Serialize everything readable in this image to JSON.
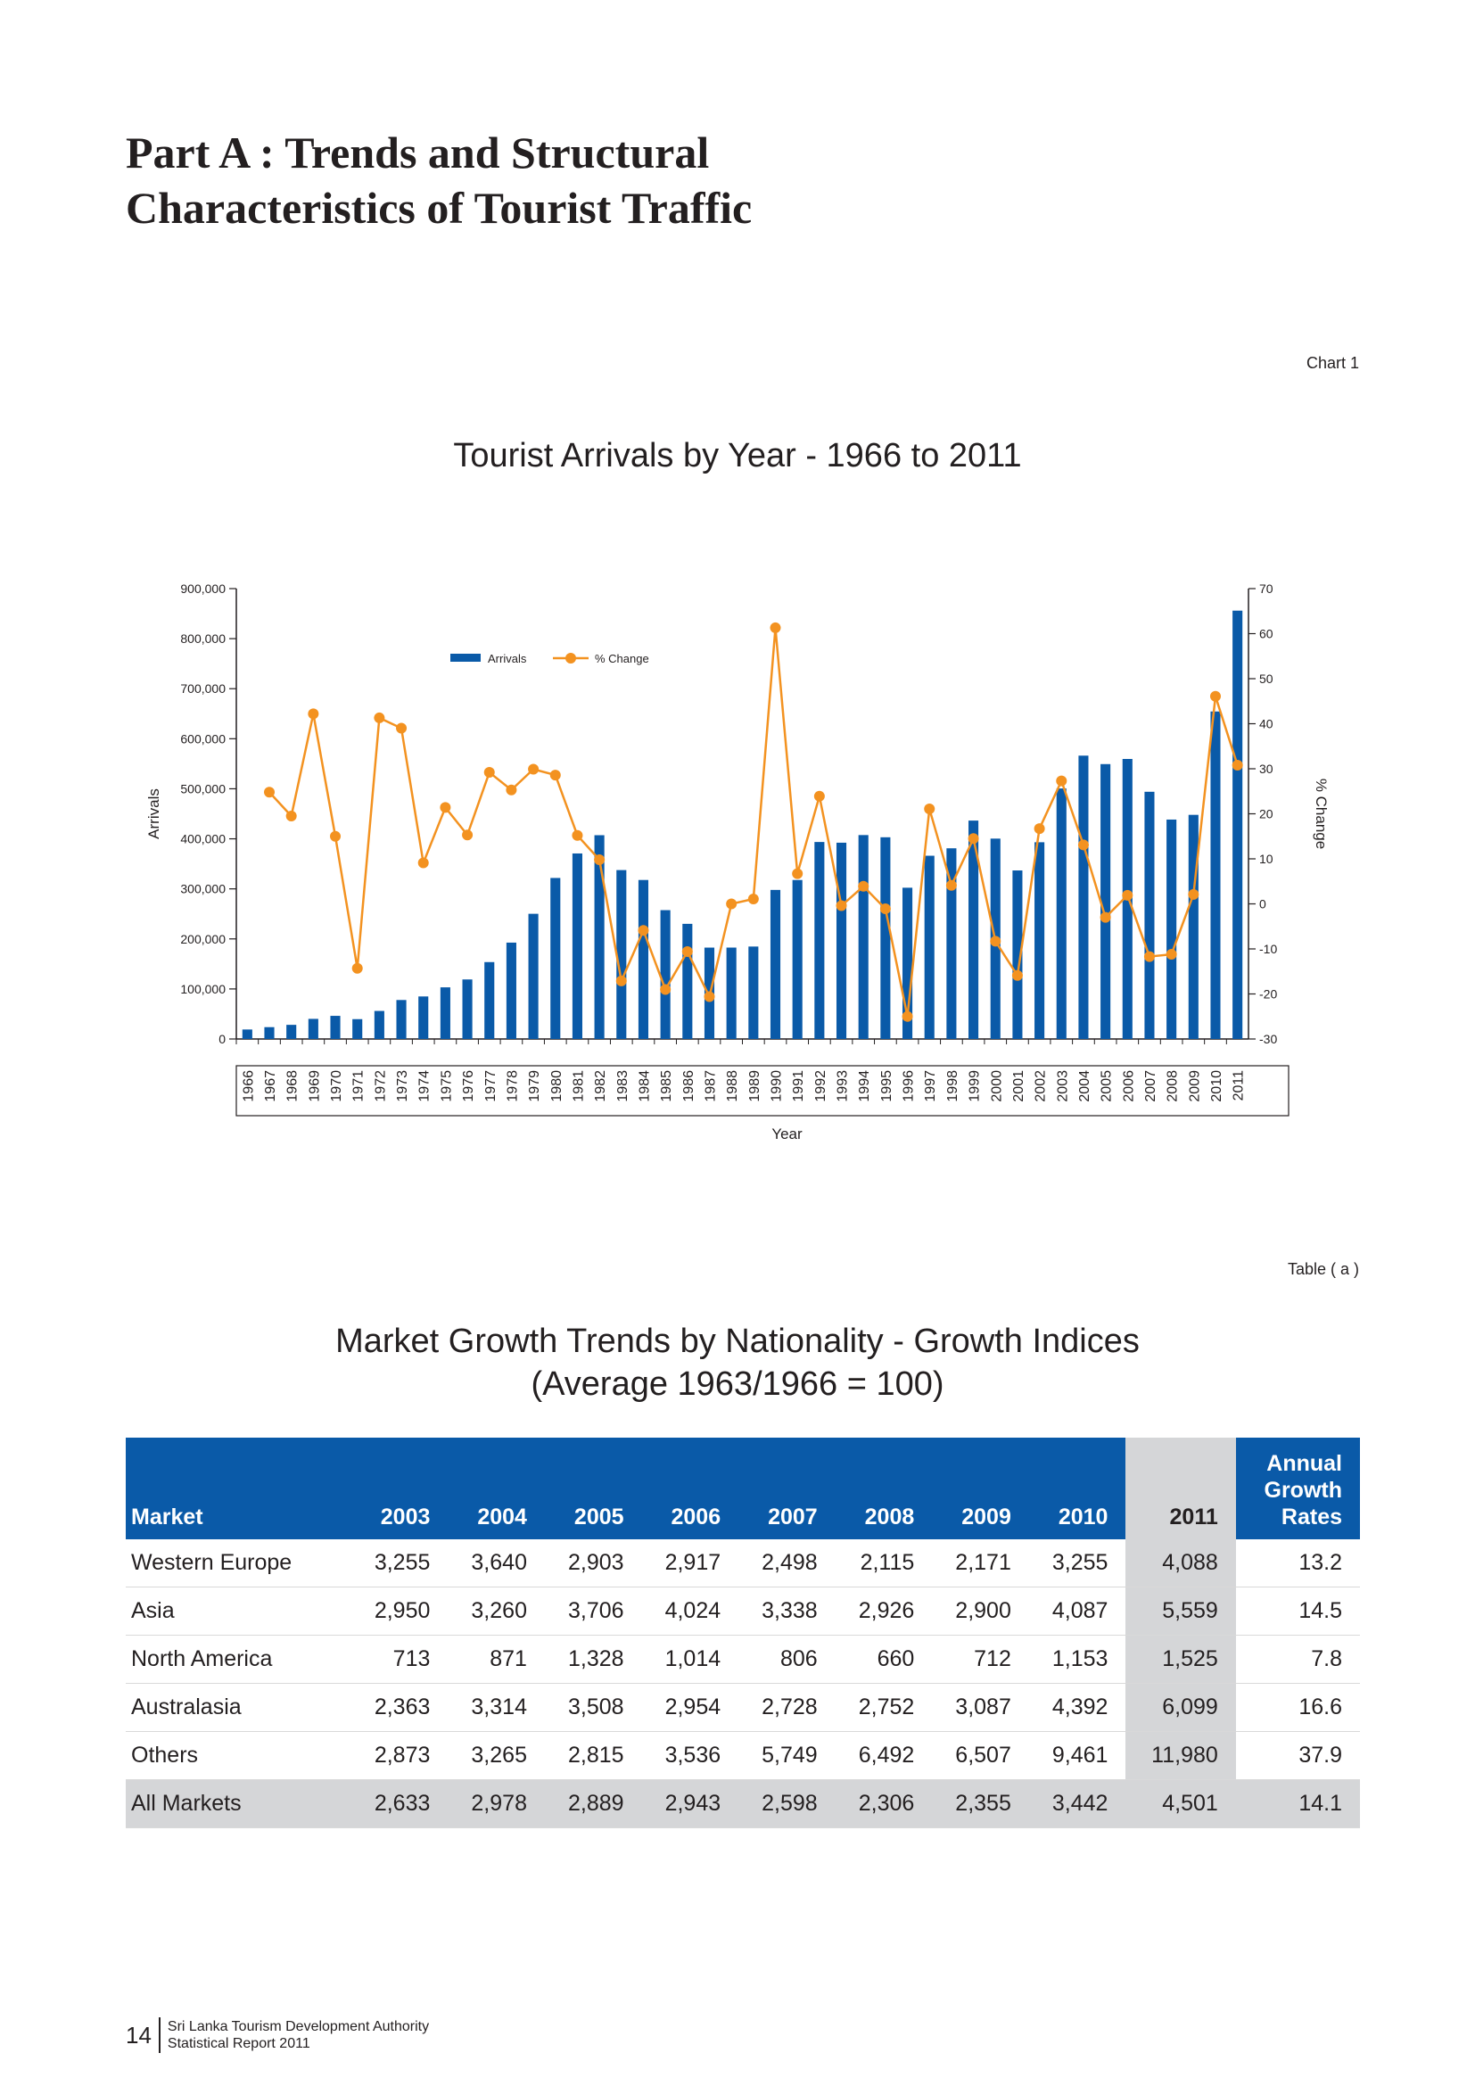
{
  "heading": {
    "line1": "Part A : Trends and Structural",
    "line2": "Characteristics of Tourist Traffic"
  },
  "chart_label": "Chart 1",
  "chart_title": "Tourist Arrivals by Year - 1966 to 2011",
  "chart_data": {
    "type": "bar",
    "title": "Tourist Arrivals by Year - 1966 to 2011",
    "xlabel": "Year",
    "ylabel": "Arrivals",
    "y2label": "% Change",
    "ylim": [
      0,
      900000
    ],
    "y2lim": [
      -30,
      70
    ],
    "y_ticks": [
      "0",
      "100,000",
      "200,000",
      "300,000",
      "400,000",
      "500,000",
      "600,000",
      "700,000",
      "800,000",
      "900,000"
    ],
    "y2_ticks": [
      "-30",
      "-20",
      "-10",
      "0",
      "10",
      "20",
      "30",
      "40",
      "50",
      "60",
      "70"
    ],
    "legend_position": "top-left",
    "categories": [
      "1966",
      "1967",
      "1968",
      "1969",
      "1970",
      "1971",
      "1972",
      "1973",
      "1974",
      "1975",
      "1976",
      "1977",
      "1978",
      "1979",
      "1980",
      "1981",
      "1982",
      "1983",
      "1984",
      "1985",
      "1986",
      "1987",
      "1988",
      "1989",
      "1990",
      "1991",
      "1992",
      "1993",
      "1994",
      "1995",
      "1996",
      "1997",
      "1998",
      "1999",
      "2000",
      "2001",
      "2002",
      "2003",
      "2004",
      "2005",
      "2006",
      "2007",
      "2008",
      "2009",
      "2010",
      "2011"
    ],
    "series": [
      {
        "name": "Arrivals",
        "kind": "bar",
        "color": "#0a5aa8",
        "values": [
          18969,
          23666,
          28272,
          40204,
          46247,
          39654,
          56047,
          77888,
          85011,
          103204,
          118971,
          153665,
          192592,
          250164,
          321780,
          370742,
          407230,
          337530,
          317734,
          257456,
          230106,
          182620,
          182662,
          184732,
          297888,
          317703,
          393669,
          392250,
          407511,
          403101,
          302265,
          366165,
          381063,
          436440,
          400414,
          336794,
          393171,
          500642,
          566202,
          549308,
          559603,
          494008,
          438475,
          447890,
          654476,
          855975
        ]
      },
      {
        "name": "% Change",
        "kind": "line",
        "color": "#f39220",
        "values": [
          null,
          24.8,
          19.5,
          42.2,
          15.0,
          -14.3,
          41.3,
          39.0,
          9.1,
          21.4,
          15.3,
          29.2,
          25.3,
          29.9,
          28.6,
          15.2,
          9.8,
          -17.1,
          -5.9,
          -19.0,
          -10.6,
          -20.6,
          0.0,
          1.1,
          61.3,
          6.7,
          23.9,
          -0.4,
          3.9,
          -1.1,
          -25.0,
          21.1,
          4.1,
          14.5,
          -8.3,
          -15.9,
          16.7,
          27.3,
          13.1,
          -3.0,
          1.9,
          -11.7,
          -11.2,
          2.1,
          46.1,
          30.8
        ]
      }
    ]
  },
  "table_label": "Table ( a )",
  "table_title": {
    "line1": "Market Growth Trends by Nationality - Growth Indices",
    "line2": "(Average 1963/1966 = 100)"
  },
  "table": {
    "headers": [
      "Market",
      "2003",
      "2004",
      "2005",
      "2006",
      "2007",
      "2008",
      "2009",
      "2010",
      "2011"
    ],
    "last_header": {
      "line1": "Annual",
      "line2": "Growth",
      "line3": "Rates"
    },
    "rows": [
      [
        "Western Europe",
        "3,255",
        "3,640",
        "2,903",
        "2,917",
        "2,498",
        "2,115",
        "2,171",
        "3,255",
        "4,088",
        "13.2"
      ],
      [
        "Asia",
        "2,950",
        "3,260",
        "3,706",
        "4,024",
        "3,338",
        "2,926",
        "2,900",
        "4,087",
        "5,559",
        "14.5"
      ],
      [
        "North America",
        "713",
        "871",
        "1,328",
        "1,014",
        "806",
        "660",
        "712",
        "1,153",
        "1,525",
        "7.8"
      ],
      [
        "Australasia",
        "2,363",
        "3,314",
        "3,508",
        "2,954",
        "2,728",
        "2,752",
        "3,087",
        "4,392",
        "6,099",
        "16.6"
      ],
      [
        "Others",
        "2,873",
        "3,265",
        "2,815",
        "3,536",
        "5,749",
        "6,492",
        "6,507",
        "9,461",
        "11,980",
        "37.9"
      ],
      [
        "All Markets",
        "2,633",
        "2,978",
        "2,889",
        "2,943",
        "2,598",
        "2,306",
        "2,355",
        "3,442",
        "4,501",
        "14.1"
      ]
    ]
  },
  "footer": {
    "page_number": "14",
    "org": "Sri Lanka Tourism Development Authority",
    "report": "Statistical Report 2011"
  }
}
